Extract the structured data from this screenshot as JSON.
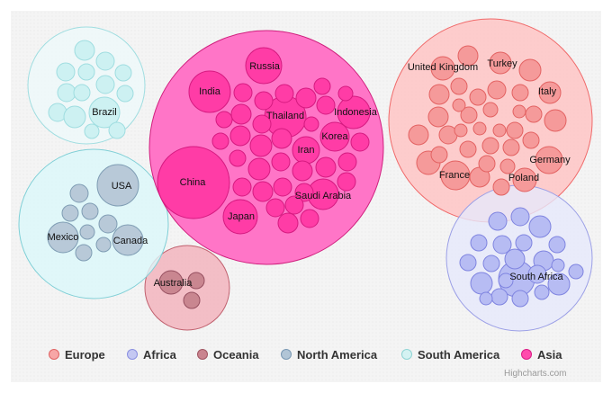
{
  "credits": "Highcharts.com",
  "chart_data": {
    "type": "packedbubble",
    "title": "",
    "legend_position": "bottom",
    "series": [
      {
        "name": "Europe",
        "color": "#f7a6a6",
        "border": "#e06363",
        "labels": [
          "United Kingdom",
          "Turkey",
          "Italy",
          "Germany",
          "Poland",
          "France"
        ],
        "point_count": 36
      },
      {
        "name": "Africa",
        "color": "#c4c8f2",
        "border": "#8a8fe0",
        "labels": [
          "South Africa"
        ],
        "point_count": 22
      },
      {
        "name": "Oceania",
        "color": "#c9848f",
        "border": "#a05562",
        "labels": [
          "Australia"
        ],
        "point_count": 3
      },
      {
        "name": "North America",
        "color": "#b1c5d6",
        "border": "#7998b3",
        "labels": [
          "USA",
          "Mexico",
          "Canada"
        ],
        "point_count": 9
      },
      {
        "name": "South America",
        "color": "#d4f2f2",
        "border": "#8fd4d4",
        "labels": [
          "Brazil"
        ],
        "point_count": 14
      },
      {
        "name": "Asia",
        "color": "#ff4bad",
        "border": "#d91c85",
        "labels": [
          "Russia",
          "India",
          "Thailand",
          "Indonesia",
          "Korea",
          "Iran",
          "China",
          "Saudi Arabia",
          "Japan"
        ],
        "point_count": 40
      }
    ]
  }
}
